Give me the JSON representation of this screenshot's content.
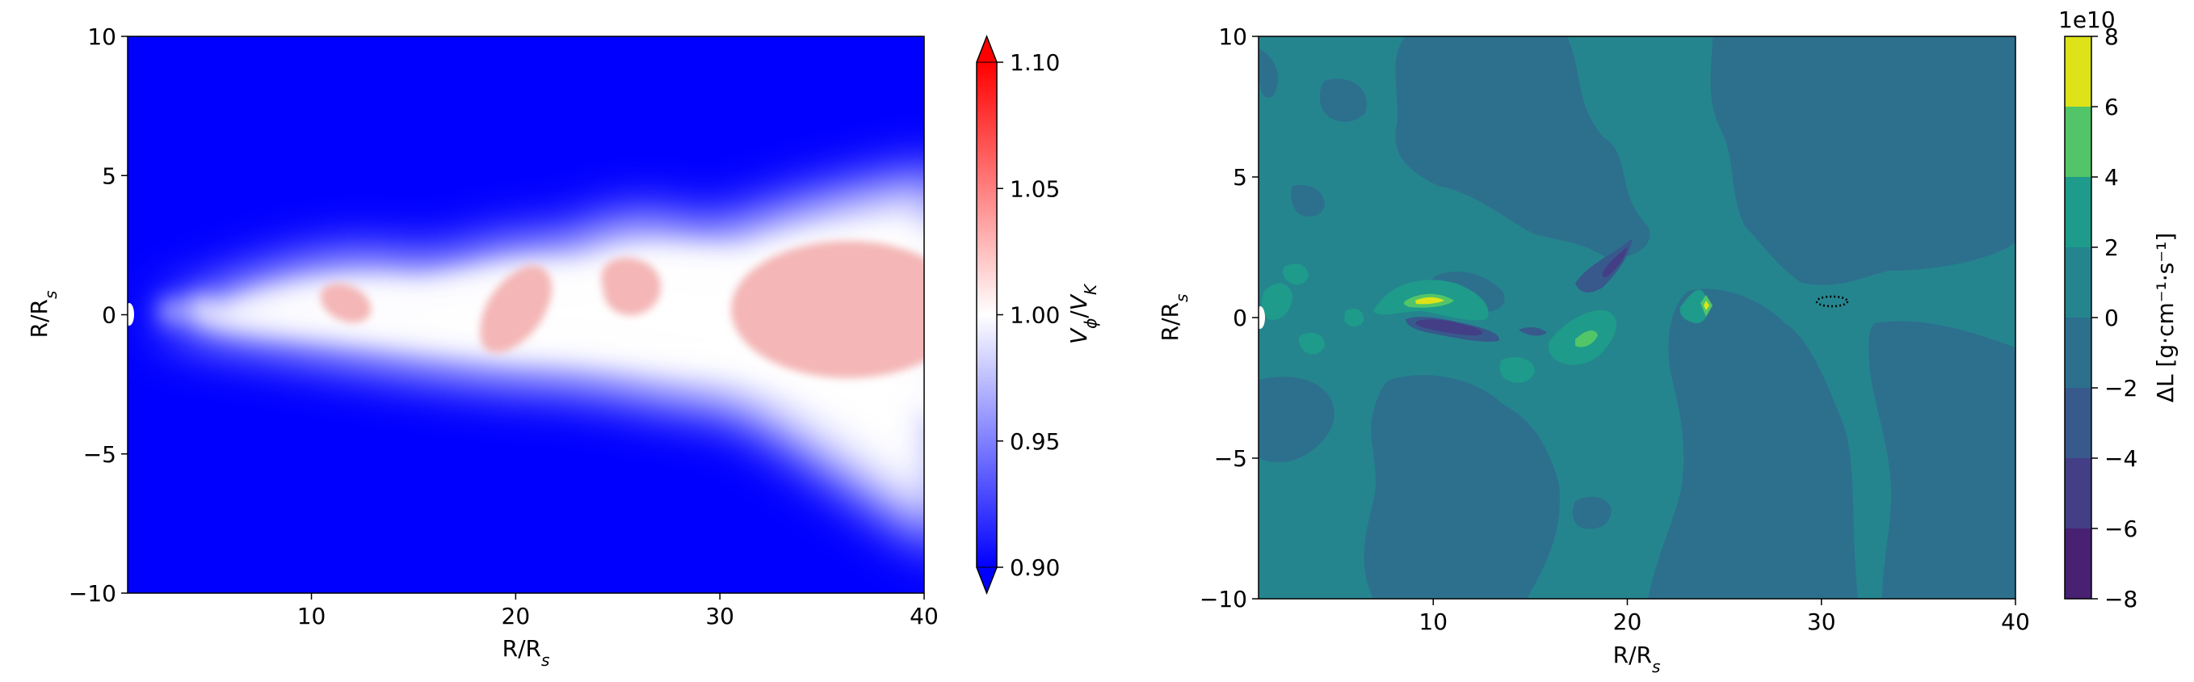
{
  "chart_data": [
    {
      "type": "heatmap",
      "xlabel": {
        "main": "R/R",
        "sub": "s"
      },
      "ylabel": {
        "main": "R/R",
        "sub": "s"
      },
      "xlim": [
        1,
        40
      ],
      "ylim": [
        -10,
        10
      ],
      "x_ticks": [
        10,
        20,
        30,
        40
      ],
      "x_tick_labels": [
        "10",
        "20",
        "30",
        "40"
      ],
      "y_ticks": [
        -10,
        -5,
        0,
        5,
        10
      ],
      "y_tick_labels": [
        "−10",
        "−5",
        "0",
        "5",
        "10"
      ],
      "colorbar": {
        "label": {
          "base": "V",
          "base_sub": "ϕ",
          "sep": "/",
          "ref": "V",
          "ref_sub": "K"
        },
        "range": [
          0.9,
          1.1
        ],
        "extend": "both",
        "colormap": "bwr",
        "ticks": [
          0.9,
          0.95,
          1.0,
          1.05,
          1.1
        ],
        "tick_labels": [
          "0.90",
          "0.95",
          "1.00",
          "1.05",
          "1.10"
        ],
        "colors": {
          "low": "#0000ff",
          "mid": "#ffffff",
          "high": "#ff0000"
        }
      },
      "regions": [
        {
          "x": 12,
          "y": 0.5,
          "value": 1.02
        },
        {
          "x": 19.5,
          "y": 0.0,
          "value": 1.02
        },
        {
          "x": 25,
          "y": 0.8,
          "value": 1.02
        },
        {
          "x": 35,
          "y": 0.5,
          "value": 1.02
        }
      ]
    },
    {
      "type": "heatmap",
      "xlabel": {
        "main": "R/R",
        "sub": "s"
      },
      "ylabel": {
        "main": "R/R",
        "sub": "s"
      },
      "xlim": [
        1,
        40
      ],
      "ylim": [
        -10,
        10
      ],
      "x_ticks": [
        10,
        20,
        30,
        40
      ],
      "x_tick_labels": [
        "10",
        "20",
        "30",
        "40"
      ],
      "y_ticks": [
        -10,
        -5,
        0,
        5,
        10
      ],
      "y_tick_labels": [
        "−10",
        "−5",
        "0",
        "5",
        "10"
      ],
      "colorbar": {
        "label_text": "ΔL [g·cm⁻¹·s⁻¹]",
        "offset_text": "1e10",
        "range": [
          -8,
          8
        ],
        "ticks": [
          -8,
          -6,
          -4,
          -2,
          0,
          2,
          4,
          6,
          8
        ],
        "tick_labels": [
          "−8",
          "−6",
          "−4",
          "−2",
          "0",
          "2",
          "4",
          "6",
          "8"
        ],
        "levels": [
          {
            "from": -8,
            "to": -6,
            "color": "#482173"
          },
          {
            "from": -6,
            "to": -4,
            "color": "#433e85"
          },
          {
            "from": -4,
            "to": -2,
            "color": "#38598c"
          },
          {
            "from": -2,
            "to": 0,
            "color": "#2d708e"
          },
          {
            "from": 0,
            "to": 2,
            "color": "#25858e"
          },
          {
            "from": 2,
            "to": 4,
            "color": "#1e9b8a"
          },
          {
            "from": 4,
            "to": 6,
            "color": "#52c569"
          },
          {
            "from": 6,
            "to": 8,
            "color": "#dde318"
          }
        ]
      }
    }
  ]
}
